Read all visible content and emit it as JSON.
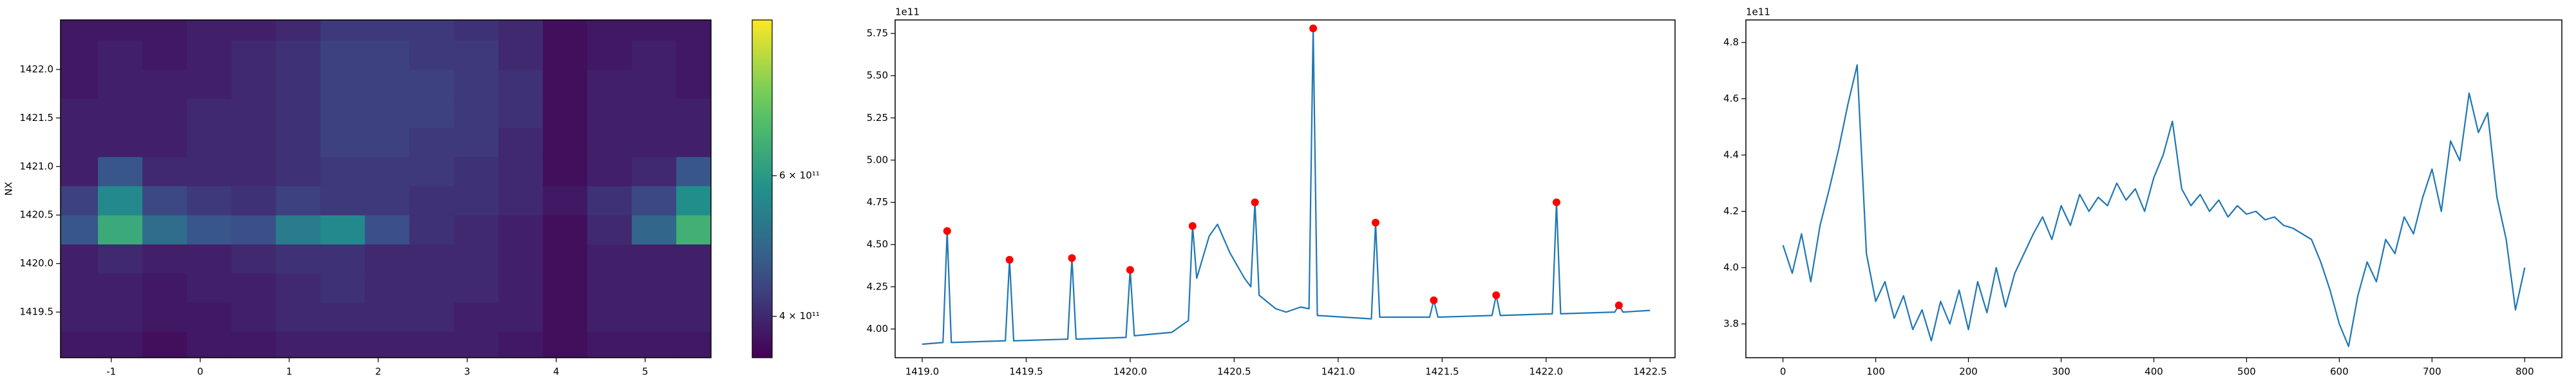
{
  "chart_data": [
    {
      "type": "heatmap",
      "ylabel": "NX",
      "x": [
        -1.4,
        -0.9,
        -0.4,
        0.1,
        0.6,
        1.1,
        1.6,
        2.1,
        2.6,
        3.1,
        3.6,
        4.1,
        4.6,
        5.1,
        5.6
      ],
      "y": [
        1419.15,
        1419.45,
        1419.75,
        1420.05,
        1420.35,
        1420.65,
        1420.95,
        1421.25,
        1421.55,
        1421.85,
        1422.15,
        1422.45
      ],
      "z": [
        [
          3.8,
          3.8,
          3.7,
          3.8,
          3.8,
          3.9,
          3.9,
          3.9,
          3.9,
          3.9,
          3.8,
          3.7,
          3.8,
          3.8,
          3.8
        ],
        [
          3.9,
          3.9,
          3.8,
          3.8,
          3.9,
          4.0,
          4.0,
          4.0,
          4.0,
          3.9,
          3.9,
          3.7,
          3.9,
          3.9,
          3.9
        ],
        [
          3.9,
          3.9,
          3.8,
          3.9,
          3.9,
          4.0,
          4.1,
          4.0,
          4.0,
          4.0,
          3.9,
          3.7,
          3.9,
          3.9,
          3.9
        ],
        [
          3.9,
          4.0,
          3.9,
          3.9,
          4.0,
          4.1,
          4.1,
          4.0,
          4.0,
          4.0,
          3.9,
          3.7,
          3.9,
          3.9,
          3.9
        ],
        [
          4.6,
          6.4,
          5.0,
          4.6,
          4.5,
          5.3,
          5.6,
          4.5,
          4.1,
          4.0,
          3.9,
          3.7,
          4.0,
          4.9,
          6.6
        ],
        [
          4.3,
          5.6,
          4.4,
          4.2,
          4.1,
          4.3,
          4.2,
          4.2,
          4.1,
          4.1,
          4.0,
          3.8,
          4.1,
          4.4,
          5.7
        ],
        [
          3.9,
          4.6,
          4.0,
          4.0,
          4.0,
          4.1,
          4.2,
          4.2,
          4.2,
          4.1,
          4.0,
          3.7,
          3.9,
          4.0,
          4.6
        ],
        [
          3.9,
          3.9,
          3.9,
          4.0,
          4.0,
          4.1,
          4.3,
          4.3,
          4.2,
          4.2,
          4.0,
          3.7,
          3.9,
          3.9,
          3.9
        ],
        [
          3.9,
          3.9,
          3.9,
          4.0,
          4.0,
          4.1,
          4.3,
          4.3,
          4.3,
          4.2,
          4.1,
          3.7,
          3.9,
          3.9,
          3.9
        ],
        [
          3.8,
          3.9,
          3.9,
          3.9,
          4.0,
          4.1,
          4.3,
          4.3,
          4.3,
          4.2,
          4.1,
          3.7,
          3.9,
          3.9,
          3.8
        ],
        [
          3.8,
          3.9,
          3.8,
          3.9,
          4.0,
          4.1,
          4.3,
          4.3,
          4.2,
          4.2,
          4.0,
          3.7,
          3.8,
          3.9,
          3.8
        ],
        [
          3.8,
          3.8,
          3.8,
          3.9,
          3.9,
          4.0,
          4.2,
          4.2,
          4.2,
          4.1,
          4.0,
          3.7,
          3.8,
          3.8,
          3.8
        ]
      ],
      "xlim": [
        -1.57,
        5.74
      ],
      "ylim": [
        1419.03,
        1422.51
      ],
      "xticks": [
        -1,
        0,
        1,
        2,
        3,
        4,
        5
      ],
      "yticks": [
        1419.5,
        {
          "value": 1420,
          "label": "1420.0"
        },
        1420.5,
        {
          "value": 1421,
          "label": "1421.0"
        },
        1421.5,
        {
          "value": 1422,
          "label": "1422.0"
        }
      ],
      "colorbar": {
        "log": true,
        "colormap": "viridis",
        "lim": [
          3.55,
          9.4
        ],
        "ticks": [
          {
            "value": 4,
            "label": "4 × 10¹¹"
          },
          {
            "value": 6,
            "label": "6 × 10¹¹"
          }
        ]
      }
    },
    {
      "type": "line",
      "offset_label": "1e11",
      "x": [
        1419.0,
        1419.1,
        1419.12,
        1419.14,
        1419.4,
        1419.42,
        1419.44,
        1419.7,
        1419.72,
        1419.74,
        1419.98,
        1420.0,
        1420.02,
        1420.2,
        1420.28,
        1420.3,
        1420.32,
        1420.38,
        1420.42,
        1420.48,
        1420.55,
        1420.58,
        1420.6,
        1420.62,
        1420.7,
        1420.75,
        1420.82,
        1420.86,
        1420.88,
        1420.9,
        1421.16,
        1421.18,
        1421.2,
        1421.44,
        1421.46,
        1421.48,
        1421.74,
        1421.76,
        1421.78,
        1422.03,
        1422.05,
        1422.07,
        1422.33,
        1422.35,
        1422.37,
        1422.5
      ],
      "series": [
        {
          "color": "#1f77b4",
          "values": [
            3.91,
            3.92,
            4.58,
            3.92,
            3.93,
            4.41,
            3.93,
            3.94,
            4.42,
            3.94,
            3.95,
            4.35,
            3.96,
            3.98,
            4.05,
            4.61,
            4.3,
            4.55,
            4.62,
            4.45,
            4.3,
            4.25,
            4.75,
            4.2,
            4.12,
            4.1,
            4.13,
            4.12,
            5.78,
            4.08,
            4.06,
            4.63,
            4.07,
            4.07,
            4.17,
            4.07,
            4.08,
            4.2,
            4.08,
            4.09,
            4.75,
            4.09,
            4.1,
            4.14,
            4.1,
            4.11
          ]
        }
      ],
      "peaks": {
        "color": "#ff0000",
        "x": [
          1419.12,
          1419.42,
          1419.72,
          1420.0,
          1420.3,
          1420.6,
          1420.88,
          1421.18,
          1421.46,
          1421.76,
          1422.05,
          1422.35
        ],
        "values": [
          4.58,
          4.41,
          4.42,
          4.35,
          4.61,
          4.75,
          5.78,
          4.63,
          4.17,
          4.2,
          4.75,
          4.14
        ]
      },
      "xlim": [
        1418.87,
        1422.62
      ],
      "ylim": [
        3.83,
        5.83
      ],
      "xticks": [
        {
          "value": 1419,
          "label": "1419.0"
        },
        1419.5,
        {
          "value": 1420,
          "label": "1420.0"
        },
        1420.5,
        {
          "value": 1421,
          "label": "1421.0"
        },
        1421.5,
        {
          "value": 1422,
          "label": "1422.0"
        },
        1422.5
      ],
      "yticks": [
        {
          "value": 4,
          "label": "4.00"
        },
        4.25,
        {
          "value": 4.5,
          "label": "4.50"
        },
        4.75,
        {
          "value": 5,
          "label": "5.00"
        },
        5.25,
        {
          "value": 5.5,
          "label": "5.50"
        },
        5.75
      ]
    },
    {
      "type": "line",
      "offset_label": "1e11",
      "x": [
        0,
        10,
        20,
        30,
        40,
        50,
        60,
        70,
        80,
        90,
        100,
        110,
        120,
        130,
        140,
        150,
        160,
        170,
        180,
        190,
        200,
        210,
        220,
        230,
        240,
        250,
        260,
        270,
        280,
        290,
        300,
        310,
        320,
        330,
        340,
        350,
        360,
        370,
        380,
        390,
        400,
        410,
        420,
        430,
        440,
        450,
        460,
        470,
        480,
        490,
        500,
        510,
        520,
        530,
        540,
        550,
        560,
        570,
        580,
        590,
        600,
        610,
        620,
        630,
        640,
        650,
        660,
        670,
        680,
        690,
        700,
        710,
        720,
        730,
        740,
        750,
        760,
        770,
        780,
        790,
        800
      ],
      "series": [
        {
          "color": "#1f77b4",
          "values": [
            4.08,
            3.98,
            4.12,
            3.95,
            4.15,
            4.28,
            4.42,
            4.58,
            4.72,
            4.05,
            3.88,
            3.95,
            3.82,
            3.9,
            3.78,
            3.85,
            3.74,
            3.88,
            3.8,
            3.92,
            3.78,
            3.95,
            3.84,
            4.0,
            3.86,
            3.98,
            4.05,
            4.12,
            4.18,
            4.1,
            4.22,
            4.15,
            4.26,
            4.2,
            4.25,
            4.22,
            4.3,
            4.24,
            4.28,
            4.2,
            4.32,
            4.4,
            4.52,
            4.28,
            4.22,
            4.26,
            4.2,
            4.24,
            4.18,
            4.22,
            4.19,
            4.2,
            4.17,
            4.18,
            4.15,
            4.14,
            4.12,
            4.1,
            4.02,
            3.92,
            3.8,
            3.72,
            3.9,
            4.02,
            3.95,
            4.1,
            4.05,
            4.18,
            4.12,
            4.25,
            4.35,
            4.2,
            4.45,
            4.38,
            4.62,
            4.48,
            4.55,
            4.25,
            4.1,
            3.85,
            4.0
          ]
        }
      ],
      "xlim": [
        -40,
        840
      ],
      "ylim": [
        3.68,
        4.88
      ],
      "xticks": [
        0,
        100,
        200,
        300,
        400,
        500,
        600,
        700,
        800
      ],
      "yticks": [
        3.8,
        {
          "value": 4,
          "label": "4.0"
        },
        4.2,
        4.4,
        4.6,
        4.8
      ]
    }
  ]
}
